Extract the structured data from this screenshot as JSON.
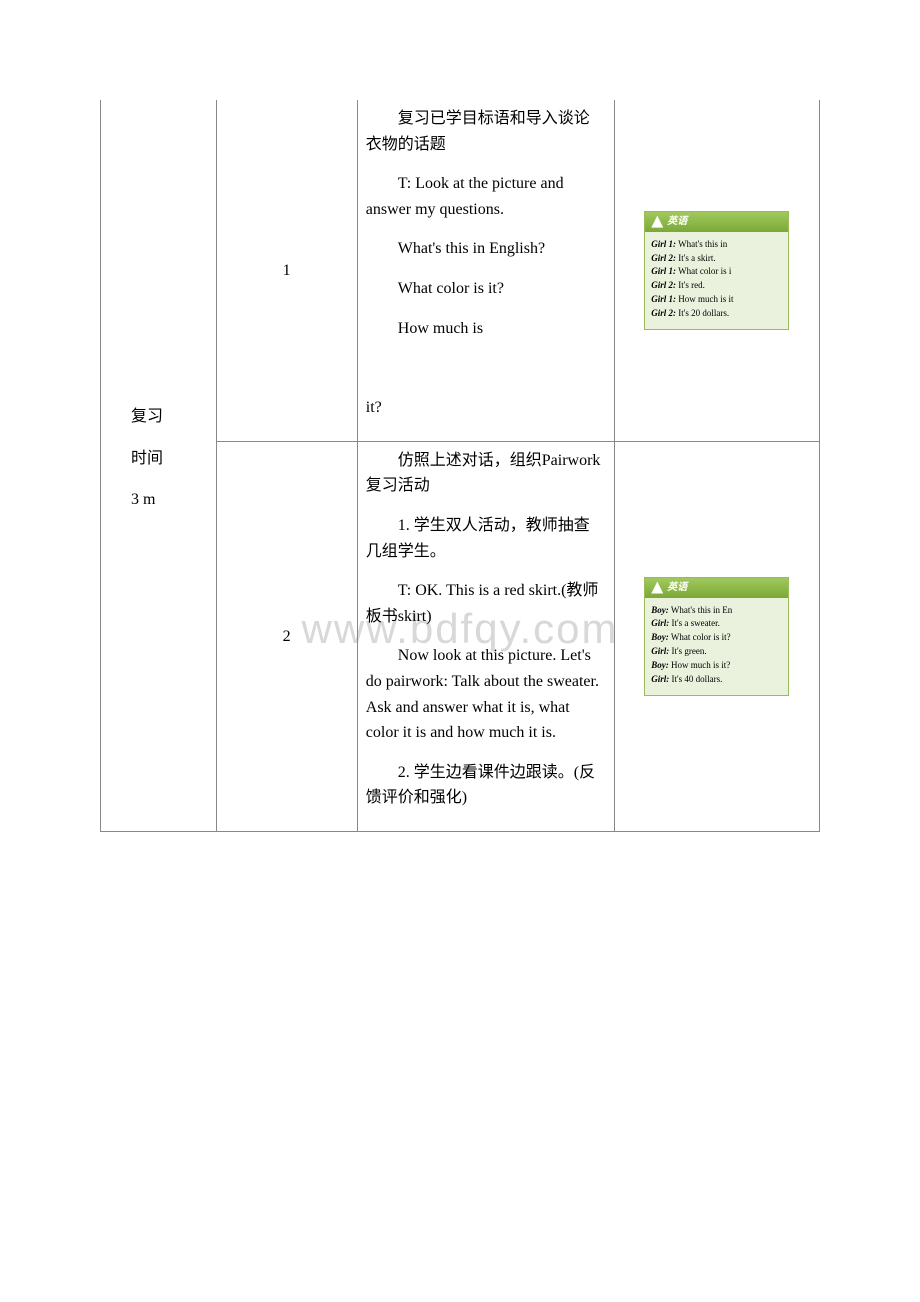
{
  "watermark": "www.bdfqy.com",
  "leftCol": {
    "line1": "复习",
    "line2": "时间",
    "line3": "3 m"
  },
  "row1": {
    "step": "1",
    "p1": "复习已学目标语和导入谈论衣物的话题",
    "p2": "T: Look at the picture and answer my questions.",
    "p3": "What's this in English?",
    "p4": "What color is it?",
    "p5": "How much is",
    "p5tail": "it?",
    "dialog": {
      "headerText": "英语",
      "lines": [
        {
          "sp": "Girl 1:",
          "txt": " What's this in"
        },
        {
          "sp": "Girl 2:",
          "txt": " It's a skirt."
        },
        {
          "sp": "Girl 1:",
          "txt": " What color is i"
        },
        {
          "sp": "Girl 2:",
          "txt": " It's red."
        },
        {
          "sp": "Girl 1:",
          "txt": " How much is it"
        },
        {
          "sp": "Girl 2:",
          "txt": " It's 20 dollars."
        }
      ]
    }
  },
  "row2": {
    "step": "2",
    "p1": "仿照上述对话，组织Pairwork复习活动",
    "p2": "1. 学生双人活动，教师抽查几组学生。",
    "p3": "T: OK. This is a red skirt.(教师板书skirt)",
    "p4": "Now look at this picture. Let's do pairwork: Talk about the sweater. Ask and answer what it is, what color it is and how much it is.",
    "p5": "2. 学生边看课件边跟读。(反馈评价和强化)",
    "dialog": {
      "headerText": "英语",
      "lines": [
        {
          "sp": "Boy:",
          "txt": " What's this in En"
        },
        {
          "sp": "Girl:",
          "txt": " It's a sweater."
        },
        {
          "sp": "Boy:",
          "txt": " What color is it?"
        },
        {
          "sp": "Girl:",
          "txt": " It's green."
        },
        {
          "sp": "Boy:",
          "txt": " How much is it?"
        },
        {
          "sp": "Girl:",
          "txt": " It's 40 dollars."
        }
      ]
    }
  }
}
